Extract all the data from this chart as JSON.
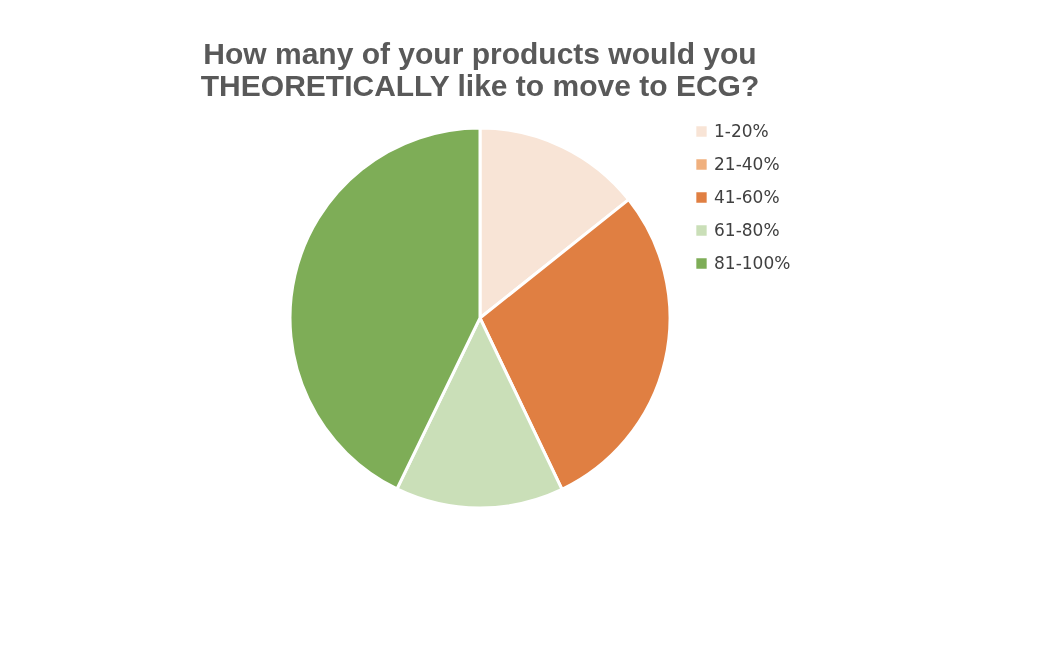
{
  "chart_data": {
    "type": "pie",
    "title": [
      "How many of your products would you",
      "THEORETICALLY like to move to ECG?"
    ],
    "categories": [
      "1-20%",
      "21-40%",
      "41-60%",
      "61-80%",
      "81-100%"
    ],
    "values": [
      14.3,
      0,
      28.6,
      14.3,
      42.8
    ],
    "colors": [
      "#f8e4d6",
      "#f0b07e",
      "#e07f42",
      "#cadfb8",
      "#7ead57"
    ],
    "legend": "right"
  }
}
